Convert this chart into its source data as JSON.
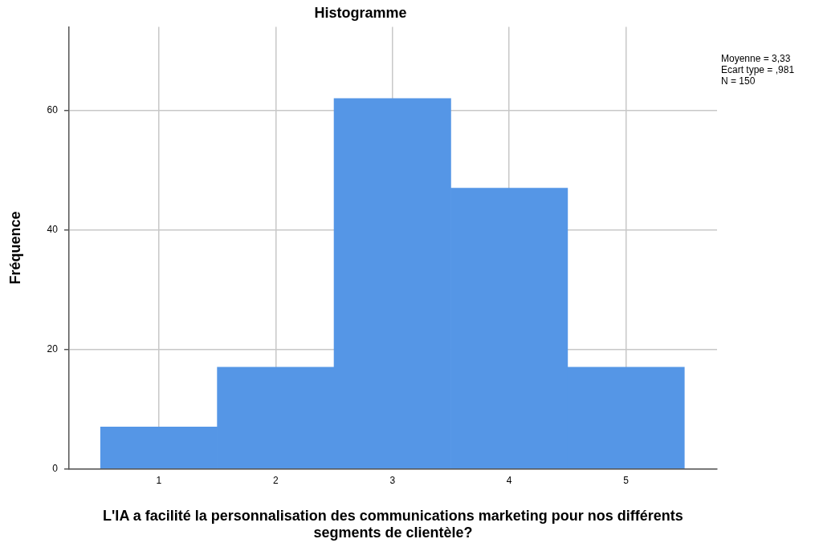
{
  "chart_data": {
    "type": "histogram",
    "title": "Histogramme",
    "xlabel": "L'IA a facilité la personnalisation des communications marketing pour nos différents segments de clientèle?",
    "ylabel": "Fréquence",
    "bins": [
      0.5,
      1.5,
      2.5,
      3.5,
      4.5,
      5.5
    ],
    "values": [
      7,
      17,
      62,
      47,
      17
    ],
    "color": "#5596e6",
    "xlim": [
      0.23,
      5.78
    ],
    "xticks": [
      1,
      2,
      3,
      4,
      5
    ],
    "ylim": [
      0,
      74
    ],
    "yticks": [
      0,
      20,
      40,
      60
    ],
    "grid": true,
    "legend": false,
    "annotations": [
      "Moyenne = 3,33",
      "Ecart type = ,981",
      "N = 150"
    ]
  }
}
